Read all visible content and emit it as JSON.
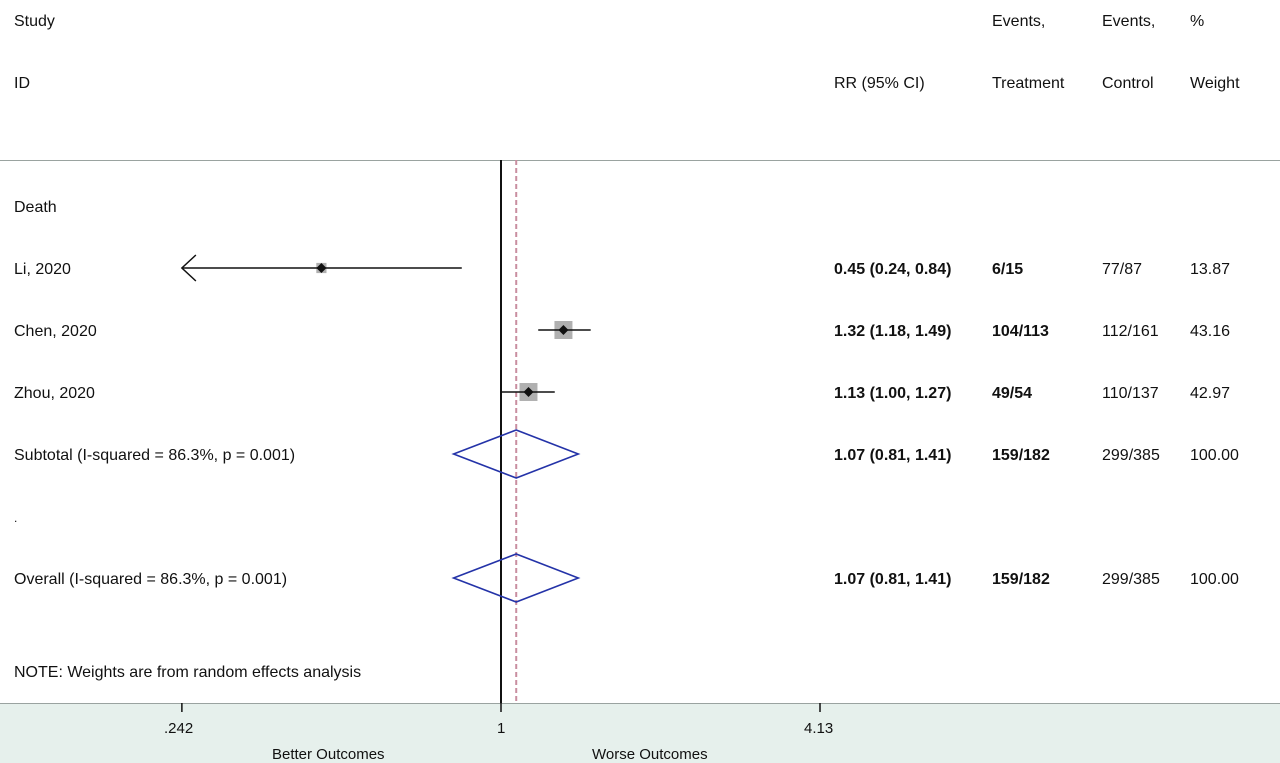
{
  "header": {
    "study": "Study",
    "id": "ID",
    "rr": "RR (95% CI)",
    "events_treatment_1": "Events,",
    "events_treatment_2": "Treatment",
    "events_control_1": "Events,",
    "events_control_2": "Control",
    "weight_1": "%",
    "weight_2": "Weight"
  },
  "group_label": "Death",
  "studies": [
    {
      "label": "Li, 2020",
      "rr_text": "0.45 (0.24, 0.84)",
      "treatment": "6/15",
      "control": "77/87",
      "weight": "13.87"
    },
    {
      "label": "Chen, 2020",
      "rr_text": "1.32 (1.18, 1.49)",
      "treatment": "104/113",
      "control": "112/161",
      "weight": "43.16"
    },
    {
      "label": "Zhou, 2020",
      "rr_text": "1.13 (1.00, 1.27)",
      "treatment": "49/54",
      "control": "110/137",
      "weight": "42.97"
    }
  ],
  "subtotal": {
    "label": "Subtotal  (I-squared = 86.3%, p = 0.001)",
    "rr_text": "1.07 (0.81, 1.41)",
    "treatment": "159/182",
    "control": "299/385",
    "weight": "100.00"
  },
  "separator": ".",
  "overall": {
    "label": "Overall  (I-squared = 86.3%, p = 0.001)",
    "rr_text": "1.07 (0.81, 1.41)",
    "treatment": "159/182",
    "control": "299/385",
    "weight": "100.00"
  },
  "note": "NOTE: Weights are from random effects analysis",
  "axis": {
    "ticks": [
      ".242",
      "1",
      "4.13"
    ],
    "left_label": "Better Outcomes",
    "right_label": "Worse Outcomes"
  },
  "colors": {
    "diamond": "#2433a8",
    "box": "#b0b0b0",
    "dashed_line": "#c98ea0",
    "axis_band": "#e6f0ec"
  },
  "chart_data": {
    "type": "forest",
    "scale": "log",
    "xlim": [
      0.242,
      4.13
    ],
    "tick_values": [
      0.242,
      1,
      4.13
    ],
    "null_value": 1,
    "pooled_estimate": 1.07,
    "studies": [
      {
        "name": "Li, 2020",
        "rr": 0.45,
        "lo": 0.24,
        "hi": 0.84,
        "weight": 13.87
      },
      {
        "name": "Chen, 2020",
        "rr": 1.32,
        "lo": 1.18,
        "hi": 1.49,
        "weight": 43.16
      },
      {
        "name": "Zhou, 2020",
        "rr": 1.13,
        "lo": 1.0,
        "hi": 1.27,
        "weight": 42.97
      }
    ],
    "subtotal": {
      "rr": 1.07,
      "lo": 0.81,
      "hi": 1.41
    },
    "overall": {
      "rr": 1.07,
      "lo": 0.81,
      "hi": 1.41
    }
  }
}
